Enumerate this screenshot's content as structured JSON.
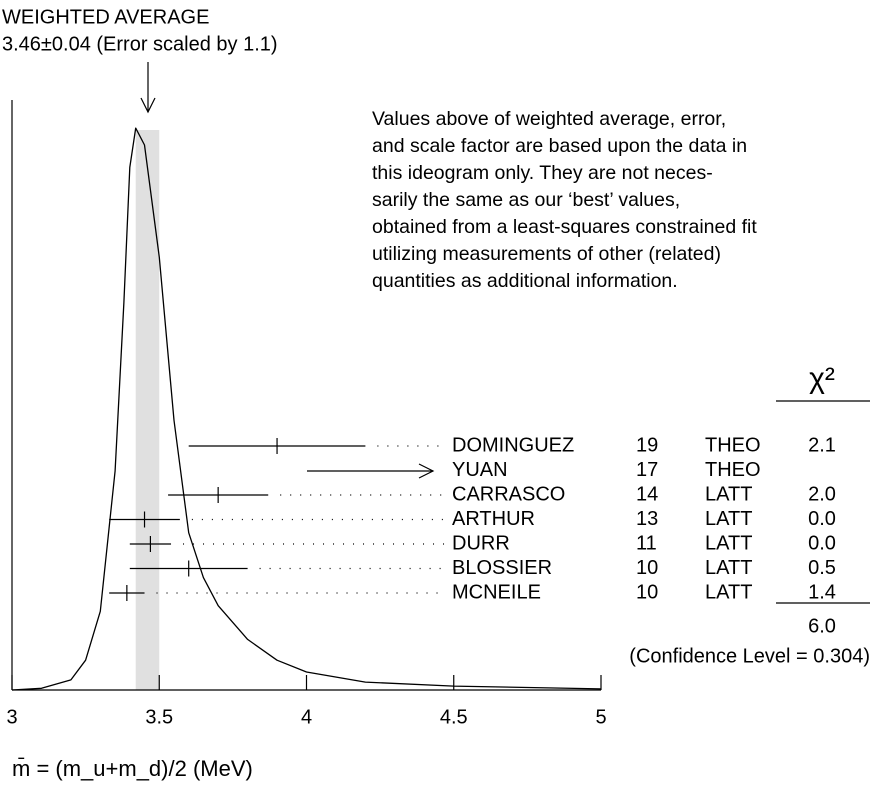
{
  "chart_data": {
    "type": "ideogram",
    "title": "WEIGHTED AVERAGE",
    "subtitle": "3.46±0.04 (Error scaled by 1.1)",
    "average": 3.46,
    "average_error": 0.04,
    "note": [
      "Values above of weighted average, error,",
      "and scale factor are based upon the data in",
      "this ideogram only.  They are not neces-",
      "sarily the same as our ‘best’ values,",
      "obtained from a least-squares constrained fit",
      "utilizing measurements of other (related)",
      "quantities as additional information."
    ],
    "x_label": "m̄ = (m_u+m_d)/2 (MeV)",
    "xlim": [
      3,
      5
    ],
    "xticks": [
      3,
      3.5,
      4,
      4.5,
      5
    ],
    "ylim": [
      0,
      1.05
    ],
    "ideogram": {
      "color": "#000000",
      "x": [
        3.0,
        3.1,
        3.2,
        3.25,
        3.3,
        3.35,
        3.38,
        3.4,
        3.42,
        3.45,
        3.5,
        3.55,
        3.6,
        3.65,
        3.7,
        3.8,
        3.9,
        4.0,
        4.2,
        4.5,
        5.0
      ],
      "y": [
        0.0,
        0.003,
        0.018,
        0.053,
        0.14,
        0.39,
        0.69,
        0.93,
        1.0,
        0.97,
        0.77,
        0.48,
        0.28,
        0.2,
        0.15,
        0.09,
        0.053,
        0.032,
        0.014,
        0.007,
        0.002
      ]
    },
    "measurements": {
      "names": [
        "DOMINGUEZ",
        "YUAN",
        "CARRASCO",
        "ARTHUR",
        "DURR",
        "BLOSSIER",
        "MCNEILE"
      ],
      "values": [
        3.9,
        null,
        3.7,
        3.45,
        3.47,
        3.6,
        3.39
      ],
      "errors": [
        0.3,
        null,
        0.17,
        0.12,
        0.07,
        0.2,
        0.06
      ],
      "refs": [
        19,
        17,
        14,
        13,
        11,
        10,
        10
      ],
      "methods": [
        "THEO",
        "THEO",
        "LATT",
        "LATT",
        "LATT",
        "LATT",
        "LATT"
      ],
      "chi2": [
        2.1,
        null,
        2.0,
        0.0,
        0.0,
        0.5,
        1.4
      ],
      "chi2_labels": [
        "2.1",
        null,
        "2.0",
        "0.0",
        "0.0",
        "0.5",
        "1.4"
      ]
    },
    "chi2_header": "χ²",
    "chi2_total": 6.0,
    "chi2_total_label": "6.0",
    "confidence": "(Confidence Level = 0.304)"
  }
}
